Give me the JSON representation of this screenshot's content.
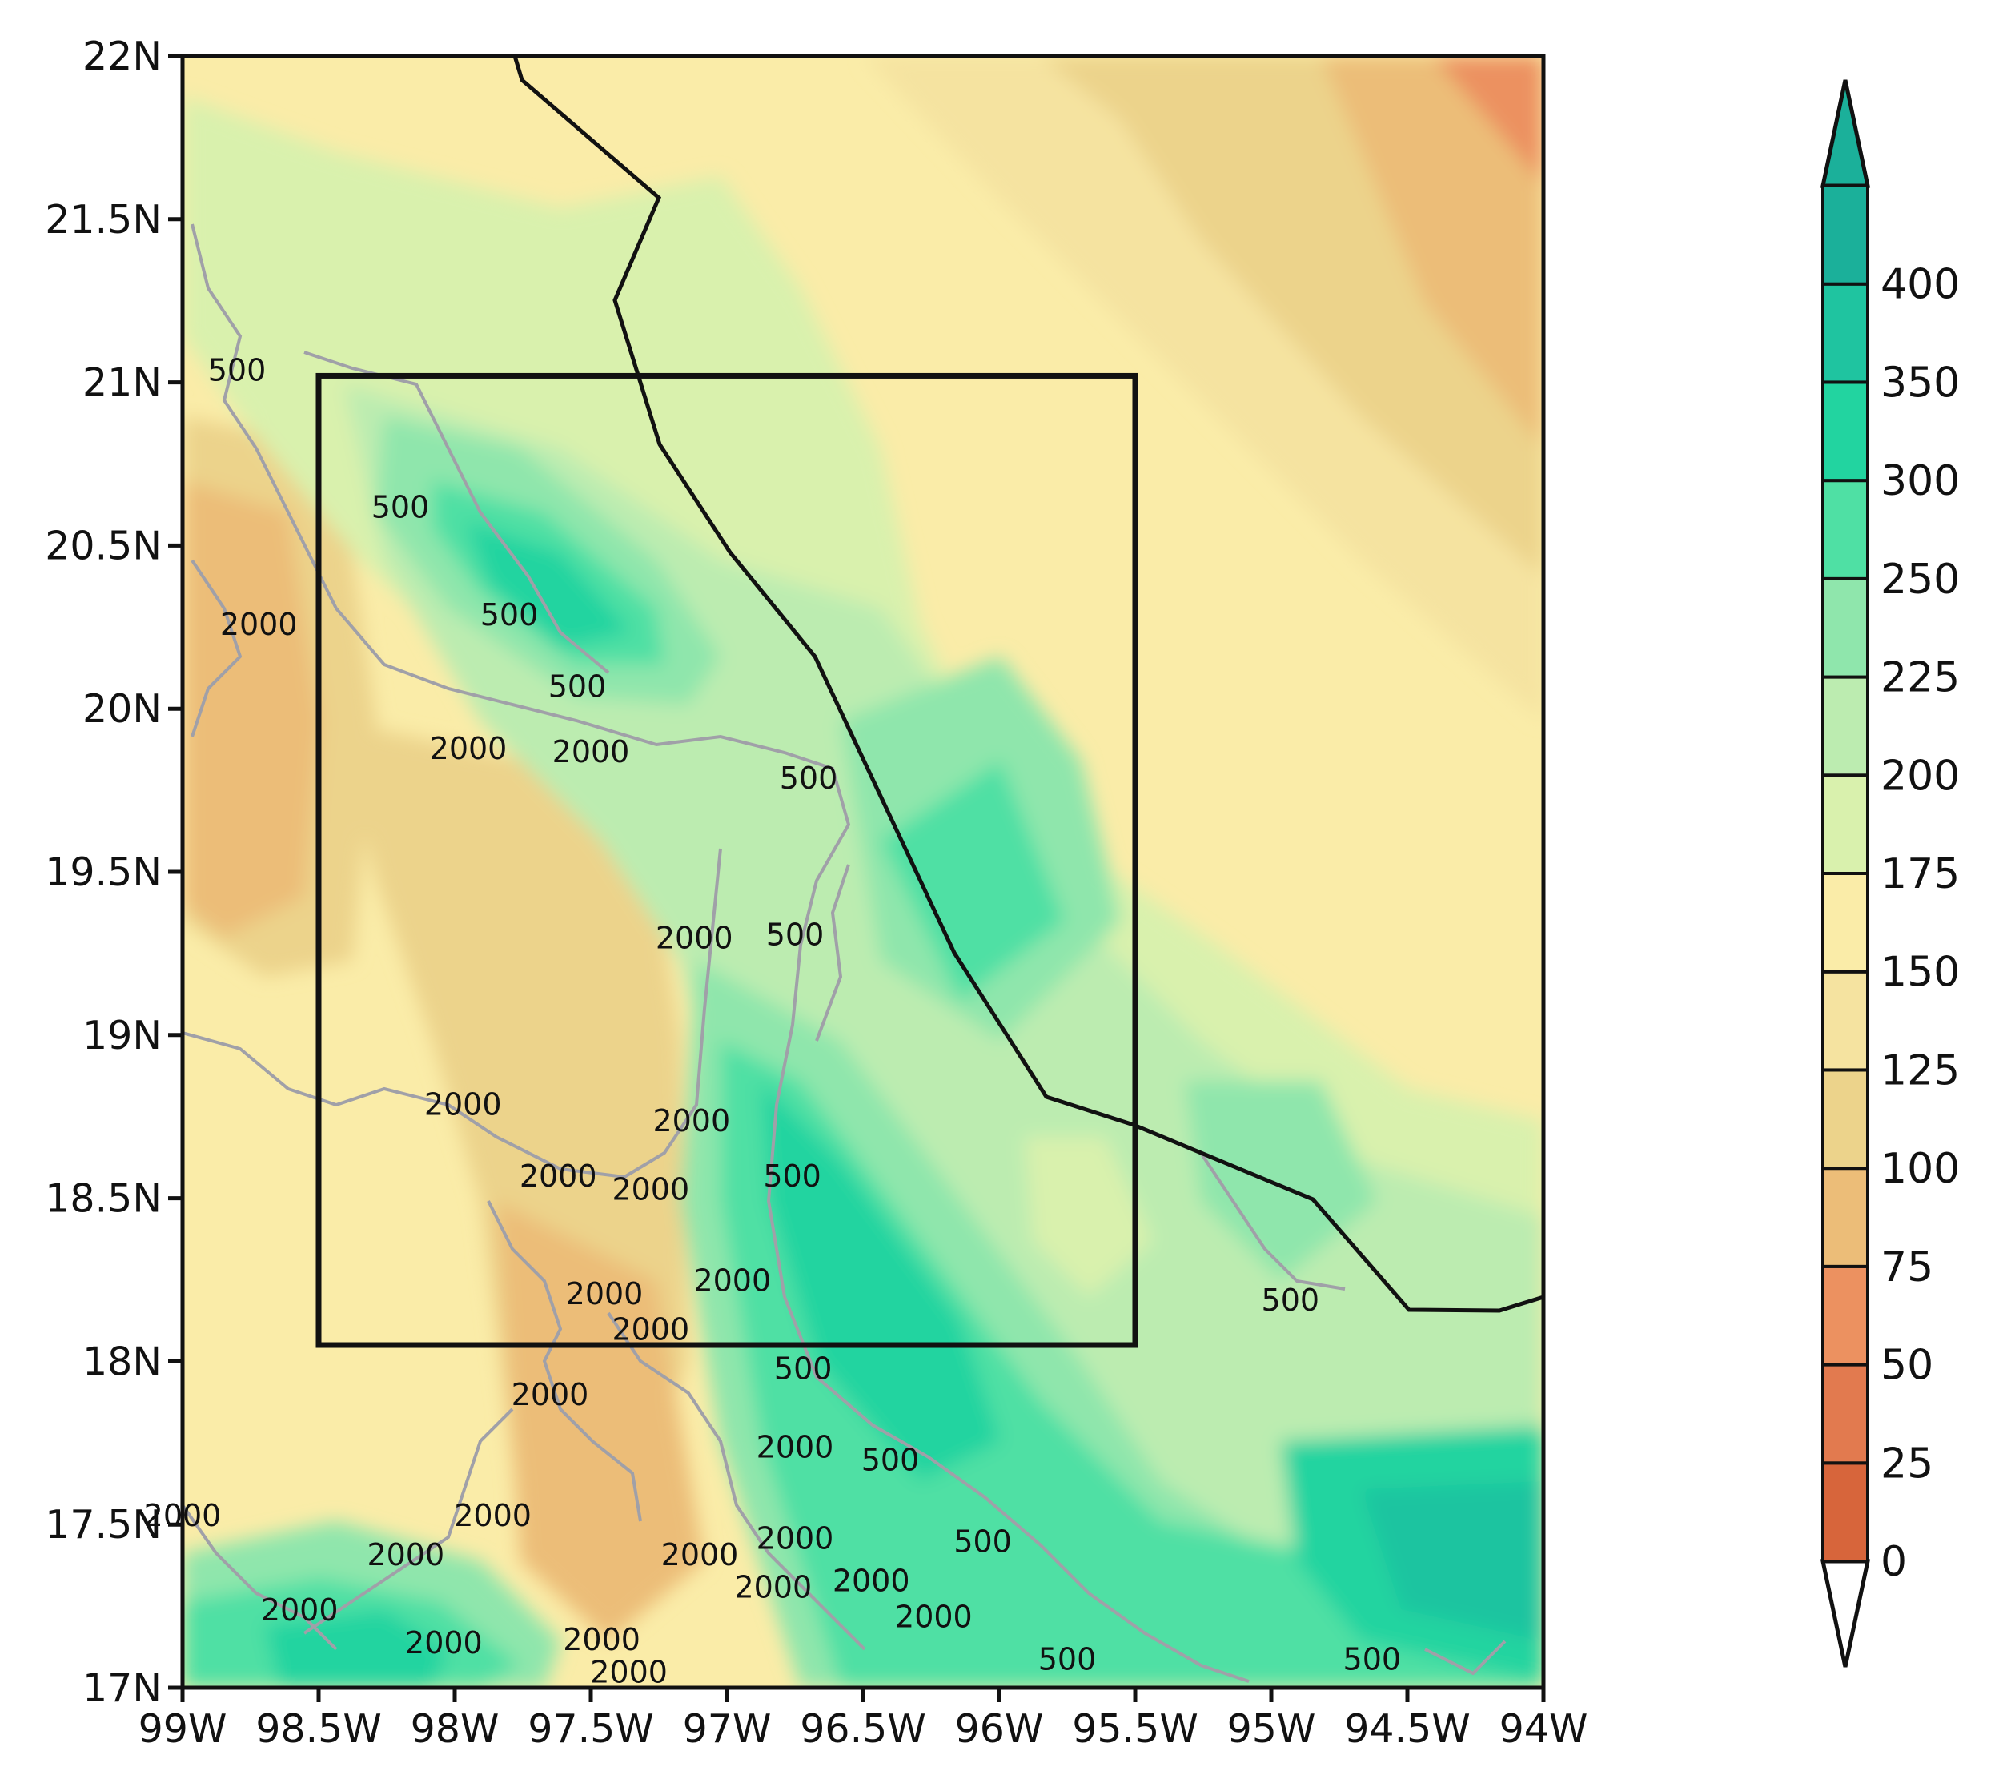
{
  "map": {
    "lat_labels": [
      "22N",
      "21.5N",
      "21N",
      "20.5N",
      "20N",
      "19.5N",
      "19N",
      "18.5N",
      "18N",
      "17.5N",
      "17N"
    ],
    "lon_labels": [
      "99W",
      "98.5W",
      "98W",
      "97.5W",
      "97W",
      "96.5W",
      "96W",
      "95.5W",
      "95W",
      "94.5W",
      "94W"
    ],
    "lat_range": [
      17,
      22
    ],
    "lon_range": [
      -99,
      -94
    ],
    "domain_box": {
      "lon_min": -98.5,
      "lon_max": -95.5,
      "lat_min": 18.05,
      "lat_max": 21.02
    },
    "contour_labels": [
      {
        "text": "500",
        "lon": -98.8,
        "lat": 21.04
      },
      {
        "text": "500",
        "lon": -98.2,
        "lat": 20.62
      },
      {
        "text": "500",
        "lon": -97.8,
        "lat": 20.29
      },
      {
        "text": "500",
        "lon": -97.55,
        "lat": 20.07
      },
      {
        "text": "2000",
        "lon": -98.72,
        "lat": 20.26
      },
      {
        "text": "2000",
        "lon": -97.95,
        "lat": 19.88
      },
      {
        "text": "2000",
        "lon": -97.5,
        "lat": 19.87
      },
      {
        "text": "500",
        "lon": -96.7,
        "lat": 19.79
      },
      {
        "text": "2000",
        "lon": -97.12,
        "lat": 19.3
      },
      {
        "text": "500",
        "lon": -96.75,
        "lat": 19.31
      },
      {
        "text": "2000",
        "lon": -97.97,
        "lat": 18.79
      },
      {
        "text": "2000",
        "lon": -97.13,
        "lat": 18.74
      },
      {
        "text": "2000",
        "lon": -97.62,
        "lat": 18.57
      },
      {
        "text": "2000",
        "lon": -97.28,
        "lat": 18.53
      },
      {
        "text": "500",
        "lon": -96.76,
        "lat": 18.57
      },
      {
        "text": "2000",
        "lon": -97.45,
        "lat": 18.21
      },
      {
        "text": "2000",
        "lon": -96.98,
        "lat": 18.25
      },
      {
        "text": "2000",
        "lon": -97.28,
        "lat": 18.1
      },
      {
        "text": "500",
        "lon": -96.72,
        "lat": 17.98
      },
      {
        "text": "2000",
        "lon": -97.65,
        "lat": 17.9
      },
      {
        "text": "2000",
        "lon": -96.75,
        "lat": 17.74
      },
      {
        "text": "500",
        "lon": -96.4,
        "lat": 17.7
      },
      {
        "text": "2000",
        "lon": -99.0,
        "lat": 17.53
      },
      {
        "text": "2000",
        "lon": -97.86,
        "lat": 17.53
      },
      {
        "text": "2000",
        "lon": -98.18,
        "lat": 17.41
      },
      {
        "text": "2000",
        "lon": -97.1,
        "lat": 17.41
      },
      {
        "text": "2000",
        "lon": -96.75,
        "lat": 17.46
      },
      {
        "text": "500",
        "lon": -96.06,
        "lat": 17.45
      },
      {
        "text": "2000",
        "lon": -96.83,
        "lat": 17.31
      },
      {
        "text": "2000",
        "lon": -96.47,
        "lat": 17.33
      },
      {
        "text": "2000",
        "lon": -98.57,
        "lat": 17.24
      },
      {
        "text": "2000",
        "lon": -98.04,
        "lat": 17.14
      },
      {
        "text": "2000",
        "lon": -97.46,
        "lat": 17.15
      },
      {
        "text": "2000",
        "lon": -96.24,
        "lat": 17.22
      },
      {
        "text": "2000",
        "lon": -97.36,
        "lat": 17.05
      },
      {
        "text": "500",
        "lon": -95.75,
        "lat": 17.09
      },
      {
        "text": "500",
        "lon": -94.93,
        "lat": 18.19
      },
      {
        "text": "500",
        "lon": -94.63,
        "lat": 17.09
      }
    ]
  },
  "colorbar": {
    "ticks": [
      "0",
      "25",
      "50",
      "75",
      "100",
      "125",
      "150",
      "175",
      "200",
      "225",
      "250",
      "300",
      "350",
      "400"
    ],
    "colors": [
      "#d7653b",
      "#e27a4f",
      "#ec9160",
      "#ecbd78",
      "#ecd38b",
      "#f5e3a0",
      "#faeca8",
      "#d9f1ad",
      "#bcecb0",
      "#8fe6ac",
      "#4fe0a4",
      "#22d4a0",
      "#1fc4a0",
      "#1bb09a"
    ],
    "under_color": "#ffffff",
    "over_color": "#1bb09a"
  }
}
